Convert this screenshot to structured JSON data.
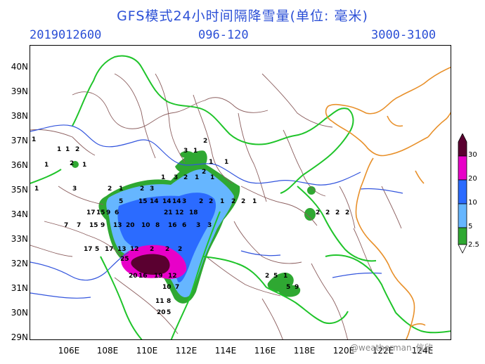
{
  "title": "GFS模式24小时间隔降雪量(单位: 毫米)",
  "header": {
    "date": "2019012600",
    "range": "096-120",
    "level": "3000-3100"
  },
  "axes": {
    "x_ticks": [
      "106E",
      "108E",
      "110E",
      "112E",
      "114E",
      "116E",
      "118E",
      "120E",
      "122E",
      "124E"
    ],
    "y_ticks": [
      "40N",
      "39N",
      "38N",
      "37N",
      "36N",
      "35N",
      "34N",
      "33N",
      "32N",
      "31N",
      "30N",
      "29N"
    ]
  },
  "colorbar": {
    "labels": [
      "30",
      "20",
      "10",
      "5",
      "2.5"
    ],
    "colors": [
      "#5a0030",
      "#e800c8",
      "#2b6bff",
      "#66b6ff",
      "#2fa832"
    ]
  },
  "watermark": "@weatherman_信欣",
  "contour_values": [
    "1",
    "1",
    "1",
    "2",
    "2",
    "1",
    "3",
    "1",
    "2",
    "1",
    "1",
    "2",
    "1",
    "1",
    "3",
    "2",
    "1",
    "2",
    "3",
    "1",
    "3",
    "2",
    "1",
    "1",
    "5",
    "15",
    "14",
    "14",
    "14",
    "3",
    "2",
    "2",
    "1",
    "2",
    "2",
    "1",
    "17",
    "15",
    "9",
    "6",
    "21",
    "12",
    "18",
    "2",
    "2",
    "2",
    "2",
    "7",
    "7",
    "15",
    "9",
    "13",
    "20",
    "10",
    "8",
    "16",
    "6",
    "3",
    "3",
    "17",
    "5",
    "17",
    "13",
    "12",
    "2",
    "2",
    "2",
    "25",
    "20",
    "16",
    "19",
    "12",
    "7",
    "10",
    "11",
    "8",
    "20",
    "5",
    "2",
    "5",
    "1",
    "5",
    "9"
  ]
}
